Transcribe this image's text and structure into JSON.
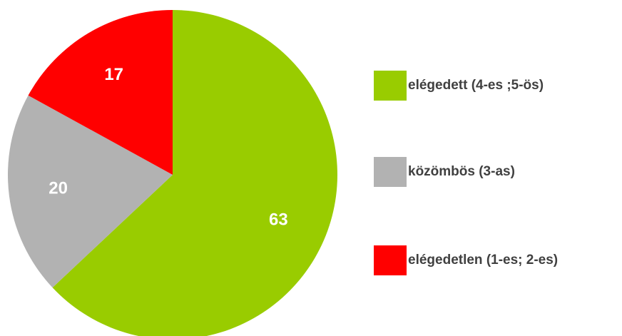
{
  "chart_data": {
    "type": "pie",
    "categories": [
      "elégedett (4-es ;5-ös)",
      "közömbös (3-as)",
      "elégedetlen (1-es; 2-es)"
    ],
    "values": [
      63,
      20,
      17
    ],
    "colors": [
      "#99cc00",
      "#b2b2b2",
      "#ff0000"
    ],
    "legend": "right"
  }
}
